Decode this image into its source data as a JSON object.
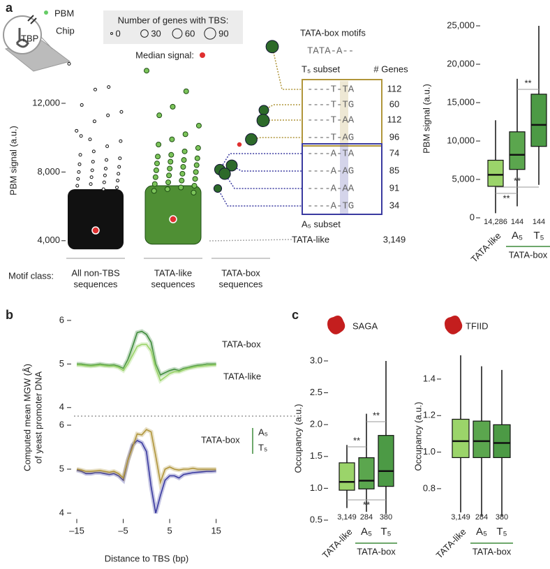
{
  "panel_labels": [
    "a",
    "b",
    "c"
  ],
  "illustration_labels": [
    "PBM",
    "Chip",
    "TBP"
  ],
  "chart_data": [
    {
      "type": "strip",
      "y_label": "PBM signal (a.u.)",
      "ylim": [
        3300,
        15600
      ],
      "yticks": [
        {
          "value": 4000,
          "label": "4,000"
        },
        {
          "value": 8000,
          "label": "8,000"
        },
        {
          "value": 12000,
          "label": "12,000"
        }
      ],
      "x_title": "Motif class:",
      "categories": [
        [
          "All non-TBS",
          "sequences"
        ],
        [
          "TATA-like",
          "sequences"
        ],
        [
          "TATA-box",
          "sequences"
        ]
      ],
      "colors": [
        "#111111",
        "#7cc45a"
      ],
      "bulk": [
        [
          3500,
          7000
        ],
        [
          3800,
          7200
        ]
      ],
      "outliers": [
        [
          14300,
          12950,
          12800,
          11900,
          11500,
          11300,
          10950,
          10100,
          9800,
          9500,
          9200,
          9000,
          8800,
          8700,
          8600,
          8450,
          8300,
          8200,
          8100,
          8000,
          7900,
          7800,
          7700,
          7600,
          7500,
          7400,
          7300,
          7200,
          7100,
          7000,
          9900,
          10400
        ],
        [
          13900,
          12700,
          11800,
          11300,
          10700,
          10200,
          9900,
          9600,
          9400,
          9200,
          9000,
          8900,
          8800,
          8700,
          8600,
          8500,
          8400,
          8300,
          8200,
          8100,
          8000,
          7900,
          7800,
          7700,
          7600,
          7500,
          7400,
          7300,
          7200,
          7100,
          7000,
          6900,
          6800
        ]
      ],
      "medians": [
        4600,
        5250,
        9600
      ],
      "median_label": "Median signal:",
      "median_color": "#e03030",
      "legend_title": "Number of genes with TBS:",
      "size_legend": [
        0,
        30,
        60,
        90
      ],
      "motif_title": "TATA-box motifs",
      "motif_color": "#3d8a3a",
      "consensus": "TATA-A--",
      "genes_header": "# Genes",
      "subsets": [
        {
          "name": "T₅ subset",
          "color": "#b0953a",
          "motifs": [
            {
              "label": "----T-TA",
              "genes": 112,
              "signal": 15300
            },
            {
              "label": "----T-TG",
              "genes": 60,
              "signal": 11600
            },
            {
              "label": "----T-AA",
              "genes": 112,
              "signal": 11000
            },
            {
              "label": "----T-AG",
              "genes": 96,
              "signal": 9900
            }
          ]
        },
        {
          "name": "A₅ subset",
          "color": "#3a3aa0",
          "motifs": [
            {
              "label": "----A-TA",
              "genes": 74,
              "signal": 8140
            },
            {
              "label": "----A-AG",
              "genes": 85,
              "signal": 8380
            },
            {
              "label": "----A-AA",
              "genes": 91,
              "signal": 7900
            },
            {
              "label": "----A-TG",
              "genes": 34,
              "signal": 7040
            }
          ]
        }
      ],
      "tata_like": {
        "label": "TATA-like",
        "genes": "3,149",
        "color": "#9bd46a"
      }
    },
    {
      "type": "box",
      "y_label": "PBM signal (a.u.)",
      "ylim": [
        0,
        25500
      ],
      "yticks": [
        0,
        {
          "value": 5000,
          "label": "5,000"
        },
        {
          "value": 10000,
          "label": "10,000"
        },
        {
          "value": 15000,
          "label": "15,000"
        },
        {
          "value": 20000,
          "label": "20,000"
        },
        {
          "value": 25000,
          "label": "25,000"
        }
      ],
      "categories": [
        "TATA-like",
        "A₅",
        "T₅"
      ],
      "category_colors": [
        "#9bd46a",
        "#3a3aa0",
        "#b0953a"
      ],
      "counts": [
        "14,286",
        "144",
        "144"
      ],
      "box_colors": [
        "#9bd46a",
        "#5ba64e",
        "#4c9a45"
      ],
      "boxes": [
        {
          "low": 600,
          "q1": 4100,
          "median": 5600,
          "q3": 7500,
          "high": 12700
        },
        {
          "low": 1500,
          "q1": 6300,
          "median": 8200,
          "q3": 11200,
          "high": 18100
        },
        {
          "low": 4300,
          "q1": 9300,
          "median": 12100,
          "q3": 16100,
          "high": 25000
        }
      ],
      "group_label": "TATA-box",
      "group_color": "#3d8a3a",
      "significance": [
        "**",
        "**",
        "**"
      ]
    },
    {
      "type": "line",
      "y_label": [
        "Computed mean MGW (Å)",
        "of yeast promoter DNA"
      ],
      "x": [
        -15,
        -14,
        -13,
        -12,
        -11,
        -10,
        -9,
        -8,
        -7,
        -6,
        -5,
        -4,
        -3,
        -2,
        -1,
        0,
        1,
        2,
        3,
        4,
        5,
        6,
        7,
        8,
        9,
        10,
        11,
        12,
        13,
        14,
        15
      ],
      "xlim": [
        -15.6,
        15.5
      ],
      "ylim": [
        3.9,
        6.15
      ],
      "yticks": [
        4,
        5,
        6
      ],
      "series": [
        {
          "name": "TATA-box",
          "color": "#3d8a3a",
          "values": [
            5.0,
            5.0,
            4.98,
            4.97,
            4.98,
            5.0,
            4.98,
            4.97,
            4.98,
            4.95,
            4.9,
            5.1,
            5.4,
            5.72,
            5.75,
            5.68,
            5.5,
            5.0,
            4.75,
            4.8,
            4.85,
            4.88,
            4.85,
            4.9,
            4.92,
            4.95,
            4.97,
            4.98,
            5.0,
            5.0,
            5.0
          ]
        },
        {
          "name": "TATA-like",
          "color": "#9bd46a",
          "values": [
            4.98,
            4.97,
            4.96,
            4.95,
            4.96,
            4.97,
            4.96,
            4.95,
            4.95,
            4.92,
            4.85,
            5.0,
            5.2,
            5.4,
            5.45,
            5.45,
            5.3,
            4.9,
            4.62,
            4.7,
            4.78,
            4.82,
            4.82,
            4.86,
            4.9,
            4.92,
            4.94,
            4.95,
            4.96,
            4.97,
            4.98
          ]
        }
      ]
    },
    {
      "type": "line",
      "x_label": "Distance to TBS (bp)",
      "x": [
        -15,
        -14,
        -13,
        -12,
        -11,
        -10,
        -9,
        -8,
        -7,
        -6,
        -5,
        -4,
        -3,
        -2,
        -1,
        0,
        1,
        2,
        3,
        4,
        5,
        6,
        7,
        8,
        9,
        10,
        11,
        12,
        13,
        14,
        15
      ],
      "xlim": [
        -15.6,
        15.5
      ],
      "xticks": [
        {
          "value": -15,
          "label": "–15"
        },
        {
          "value": -5,
          "label": "–5"
        },
        5,
        15
      ],
      "ylim": [
        3.9,
        6.1
      ],
      "yticks": [
        4,
        5,
        6
      ],
      "group_label": "TATA-box",
      "group_color": "#3d8a3a",
      "series": [
        {
          "name": "A₅",
          "color": "#3a3aa0",
          "values": [
            4.98,
            4.95,
            4.9,
            4.9,
            4.92,
            4.92,
            4.9,
            4.88,
            4.9,
            4.85,
            4.75,
            5.2,
            5.55,
            5.65,
            5.6,
            5.4,
            4.6,
            4.0,
            4.4,
            4.75,
            4.85,
            4.85,
            4.8,
            4.88,
            4.9,
            4.92,
            4.93,
            4.94,
            4.95,
            4.95,
            4.96
          ]
        },
        {
          "name": "T₅",
          "color": "#b0953a",
          "values": [
            5.0,
            4.98,
            4.95,
            4.95,
            4.96,
            4.97,
            4.95,
            4.93,
            4.95,
            4.9,
            4.8,
            5.2,
            5.5,
            5.8,
            5.78,
            5.9,
            5.85,
            5.3,
            4.7,
            5.0,
            5.05,
            5.0,
            4.98,
            5.0,
            5.0,
            5.02,
            5.0,
            5.0,
            5.0,
            5.0,
            5.0
          ]
        }
      ]
    },
    {
      "type": "box",
      "title": "SAGA",
      "y_label": "Occupancy (a.u.)",
      "ylim": [
        0.5,
        3.05
      ],
      "yticks": [
        0.5,
        {
          "value": 1.0,
          "label": "1.0"
        },
        1.5,
        {
          "value": 2.0,
          "label": "2.0"
        },
        2.5,
        {
          "value": 3.0,
          "label": "3.0"
        }
      ],
      "categories": [
        "TATA-like",
        "A₅",
        "T₅"
      ],
      "category_colors": [
        "#9bd46a",
        "#3a3aa0",
        "#b0953a"
      ],
      "counts": [
        "3,149",
        "284",
        "380"
      ],
      "box_colors": [
        "#9bd46a",
        "#5ba64e",
        "#4c9a45"
      ],
      "boxes": [
        {
          "low": 0.69,
          "q1": 0.97,
          "median": 1.1,
          "q3": 1.4,
          "high": 1.68
        },
        {
          "low": 0.63,
          "q1": 0.99,
          "median": 1.12,
          "q3": 1.48,
          "high": 2.17
        },
        {
          "low": 0.6,
          "q1": 1.03,
          "median": 1.27,
          "q3": 1.83,
          "high": 3.0
        }
      ],
      "group_label": "TATA-box",
      "group_color": "#3d8a3a",
      "significance": [
        "**",
        "**",
        "**"
      ]
    },
    {
      "type": "box",
      "title": "TFIID",
      "y_label": "Occupancy (a.u.)",
      "ylim": [
        0.62,
        1.55
      ],
      "yticks": [
        0.8,
        {
          "value": 1.0,
          "label": "1.0"
        },
        1.2,
        1.4
      ],
      "categories": [
        "TATA-like",
        "A₅",
        "T₅"
      ],
      "category_colors": [
        "#9bd46a",
        "#3a3aa0",
        "#b0953a"
      ],
      "counts": [
        "3,149",
        "284",
        "380"
      ],
      "box_colors": [
        "#9bd46a",
        "#5ba64e",
        "#4c9a45"
      ],
      "boxes": [
        {
          "low": 0.67,
          "q1": 0.97,
          "median": 1.06,
          "q3": 1.18,
          "high": 1.53
        },
        {
          "low": 0.65,
          "q1": 0.97,
          "median": 1.06,
          "q3": 1.17,
          "high": 1.47
        },
        {
          "low": 0.65,
          "q1": 0.97,
          "median": 1.05,
          "q3": 1.15,
          "high": 1.45
        }
      ],
      "group_label": "TATA-box",
      "group_color": "#3d8a3a"
    }
  ]
}
